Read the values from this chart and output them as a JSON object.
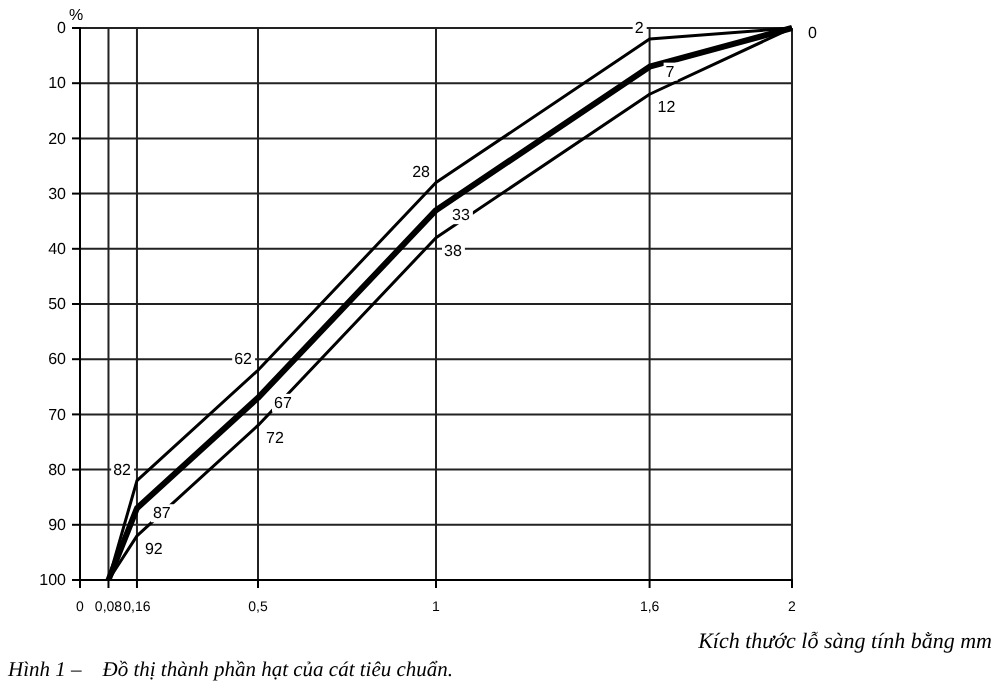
{
  "chart_data": {
    "type": "line",
    "xlabel": "Kích thước lỗ sàng tính bằng mm",
    "ylabel": "%",
    "annotations": [
      "Hình 1 –    Đồ thị thành phần hạt của cát tiêu chuẩn."
    ],
    "x": [
      0.08,
      0.16,
      0.5,
      1,
      1.6,
      2
    ],
    "series": [
      {
        "color": "#000000",
        "values": [
          100,
          82,
          62,
          28,
          2,
          0
        ],
        "value_labels": [
          null,
          "82",
          "62",
          "28",
          "2",
          null
        ]
      },
      {
        "color": "#000000",
        "values": [
          100,
          87,
          67,
          33,
          7,
          0
        ],
        "value_labels": [
          null,
          "87",
          "67",
          "33",
          "7",
          "0"
        ]
      },
      {
        "color": "#000000",
        "values": [
          100,
          92,
          72,
          38,
          12,
          0
        ],
        "value_labels": [
          null,
          "92",
          "72",
          "38",
          "12",
          null
        ]
      }
    ],
    "xlim": [
      0,
      2
    ],
    "xticks": [
      0,
      {
        "value": 0.08,
        "label": "0,08"
      },
      {
        "value": 0.16,
        "label": "0,16"
      },
      {
        "value": 0.5,
        "label": "0,5"
      },
      1,
      {
        "value": 1.6,
        "label": "1,6"
      },
      2
    ],
    "ylim": [
      100,
      0
    ],
    "yticks": [
      0,
      10,
      20,
      30,
      40,
      50,
      60,
      70,
      80,
      90,
      100
    ],
    "grid": true,
    "marker": "none",
    "line_style": "solid"
  }
}
